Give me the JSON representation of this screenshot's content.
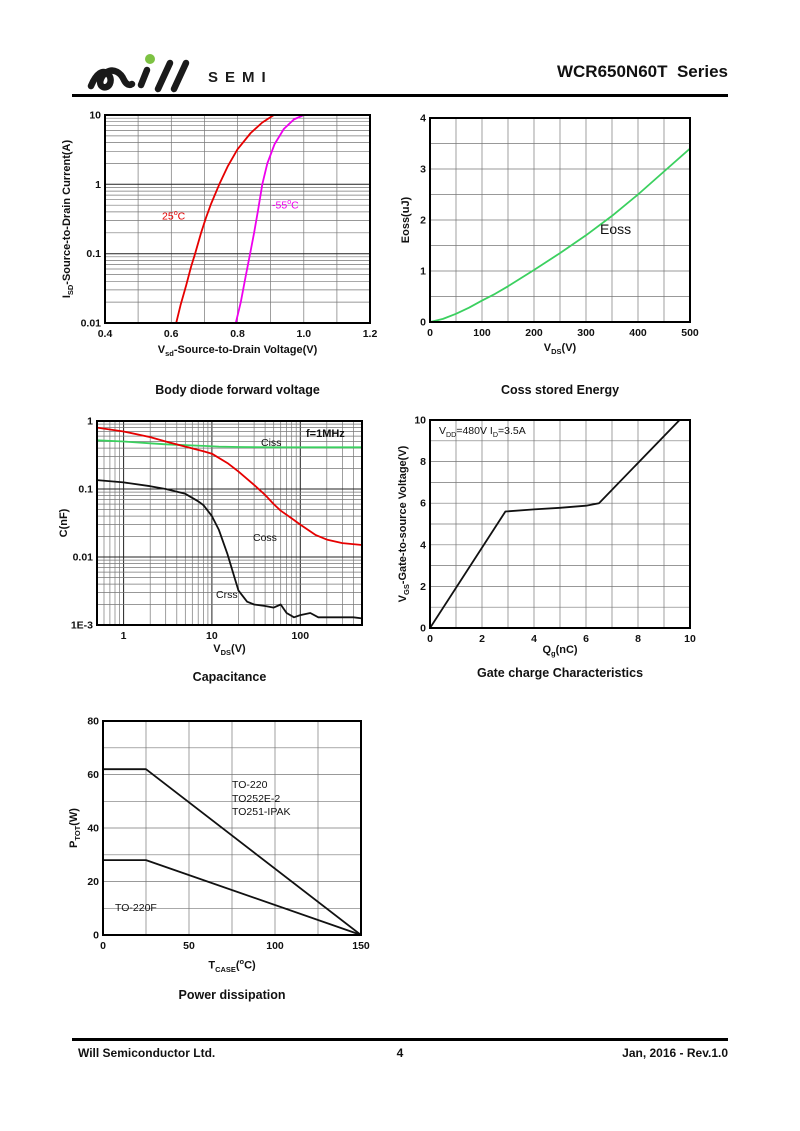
{
  "header": {
    "brand": "SEMI",
    "series_title": "WCR650N60T  Series"
  },
  "footer": {
    "company": "Will Semiconductor Ltd.",
    "page": "4",
    "date_rev": "Jan, 2016 - Rev.1.0"
  },
  "colors": {
    "red": "#e60000",
    "magenta": "#ee00ee",
    "green": "#3bd05f",
    "black": "#111111",
    "logo_dot_green": "#7dc242"
  },
  "chart_data": [
    {
      "id": "body-diode",
      "type": "line",
      "title": "Body diode forward voltage",
      "xlabel": [
        {
          "t": "V"
        },
        {
          "t": "sd",
          "sub": true
        },
        {
          "t": "-Source-to-Drain Voltage(V)"
        }
      ],
      "ylabel": [
        {
          "t": "I"
        },
        {
          "t": "SD",
          "sub": true
        },
        {
          "t": "-Source-to-Drain Current(A)"
        }
      ],
      "x_axis": {
        "scale": "linear",
        "min": 0.4,
        "max": 1.2,
        "grid_step": 0.1,
        "ticks": [
          0.4,
          0.6,
          0.8,
          1.0,
          1.2
        ],
        "tick_labels": [
          "0.4",
          "0.6",
          "0.8",
          "1.0",
          "1.2"
        ]
      },
      "y_axis": {
        "scale": "log",
        "min": 0.01,
        "max": 10,
        "ticks": [
          0.01,
          0.1,
          1,
          10
        ],
        "tick_labels": [
          "0.01",
          "0.1",
          "1",
          "10"
        ]
      },
      "series": [
        {
          "name": "25C",
          "color_key": "red",
          "points": [
            [
              0.615,
              0.01
            ],
            [
              0.628,
              0.018
            ],
            [
              0.645,
              0.035
            ],
            [
              0.66,
              0.065
            ],
            [
              0.672,
              0.1
            ],
            [
              0.69,
              0.2
            ],
            [
              0.705,
              0.33
            ],
            [
              0.72,
              0.52
            ],
            [
              0.745,
              1.0
            ],
            [
              0.77,
              1.8
            ],
            [
              0.8,
              3.2
            ],
            [
              0.84,
              5.5
            ],
            [
              0.875,
              7.8
            ],
            [
              0.91,
              10
            ]
          ]
        },
        {
          "name": "-55C",
          "color_key": "magenta",
          "points": [
            [
              0.795,
              0.01
            ],
            [
              0.81,
              0.02
            ],
            [
              0.824,
              0.045
            ],
            [
              0.838,
              0.1
            ],
            [
              0.85,
              0.2
            ],
            [
              0.862,
              0.42
            ],
            [
              0.875,
              1.0
            ],
            [
              0.89,
              2.0
            ],
            [
              0.912,
              3.8
            ],
            [
              0.94,
              6.3
            ],
            [
              0.97,
              8.6
            ],
            [
              1.0,
              10
            ]
          ]
        }
      ],
      "annotations": [
        {
          "segments": [
            {
              "t": "25"
            },
            {
              "t": "o",
              "sup": true
            },
            {
              "t": "C"
            }
          ],
          "color_key": "red",
          "fx": 0.215,
          "fy": 0.45
        },
        {
          "segments": [
            {
              "t": "-55"
            },
            {
              "t": "o",
              "sup": true
            },
            {
              "t": "C"
            }
          ],
          "color_key": "magenta",
          "fx": 0.63,
          "fy": 0.4
        }
      ]
    },
    {
      "id": "coss-energy",
      "type": "line",
      "title": "Coss stored Energy",
      "xlabel": [
        {
          "t": "V"
        },
        {
          "t": "DS",
          "sub": true
        },
        {
          "t": "(V)"
        }
      ],
      "ylabel": [
        {
          "t": "Eoss(uJ)"
        }
      ],
      "x_axis": {
        "scale": "linear",
        "min": 0,
        "max": 500,
        "grid_step": 50,
        "ticks": [
          0,
          100,
          200,
          300,
          400,
          500
        ],
        "tick_labels": [
          "0",
          "100",
          "200",
          "300",
          "400",
          "500"
        ]
      },
      "y_axis": {
        "scale": "linear",
        "min": 0,
        "max": 4,
        "grid_step": 0.5,
        "ticks": [
          0,
          1,
          2,
          3,
          4
        ],
        "tick_labels": [
          "0",
          "1",
          "2",
          "3",
          "4"
        ]
      },
      "series": [
        {
          "name": "Eoss",
          "color_key": "green",
          "points": [
            [
              0,
              0
            ],
            [
              25,
              0.06
            ],
            [
              50,
              0.16
            ],
            [
              75,
              0.28
            ],
            [
              100,
              0.42
            ],
            [
              125,
              0.55
            ],
            [
              150,
              0.7
            ],
            [
              175,
              0.86
            ],
            [
              200,
              1.02
            ],
            [
              250,
              1.35
            ],
            [
              300,
              1.7
            ],
            [
              350,
              2.08
            ],
            [
              400,
              2.5
            ],
            [
              450,
              2.95
            ],
            [
              500,
              3.4
            ]
          ]
        }
      ],
      "annotations": [
        {
          "segments": [
            {
              "t": "Eoss"
            }
          ],
          "fx": 0.655,
          "fy": 0.5,
          "size": 14
        }
      ]
    },
    {
      "id": "capacitance",
      "type": "line",
      "title": "Capacitance",
      "xlabel": [
        {
          "t": "V"
        },
        {
          "t": "DS",
          "sub": true
        },
        {
          "t": "(V)"
        }
      ],
      "ylabel": [
        {
          "t": "C(nF)"
        }
      ],
      "x_axis": {
        "scale": "log",
        "min": 0.5,
        "max": 500,
        "ticks": [
          1,
          10,
          100
        ],
        "tick_labels": [
          "1",
          "10",
          "100"
        ]
      },
      "y_axis": {
        "scale": "log",
        "min": 0.001,
        "max": 1,
        "ticks": [
          0.001,
          0.01,
          0.1,
          1
        ],
        "tick_labels": [
          "1E-3",
          "0.01",
          "0.1",
          "1"
        ]
      },
      "series": [
        {
          "name": "Ciss",
          "color_key": "green",
          "points": [
            [
              0.5,
              0.52
            ],
            [
              1,
              0.5
            ],
            [
              2,
              0.47
            ],
            [
              3,
              0.455
            ],
            [
              5,
              0.44
            ],
            [
              8,
              0.43
            ],
            [
              12,
              0.42
            ],
            [
              20,
              0.415
            ],
            [
              50,
              0.41
            ],
            [
              100,
              0.41
            ],
            [
              500,
              0.41
            ]
          ]
        },
        {
          "name": "Coss",
          "color_key": "red",
          "points": [
            [
              0.5,
              0.8
            ],
            [
              1,
              0.7
            ],
            [
              2,
              0.58
            ],
            [
              3,
              0.5
            ],
            [
              5,
              0.42
            ],
            [
              8,
              0.36
            ],
            [
              10,
              0.33
            ],
            [
              15,
              0.24
            ],
            [
              20,
              0.18
            ],
            [
              30,
              0.115
            ],
            [
              40,
              0.082
            ],
            [
              50,
              0.06
            ],
            [
              60,
              0.048
            ],
            [
              80,
              0.037
            ],
            [
              100,
              0.03
            ],
            [
              150,
              0.021
            ],
            [
              200,
              0.018
            ],
            [
              300,
              0.016
            ],
            [
              500,
              0.015
            ]
          ]
        },
        {
          "name": "Crss",
          "color_key": "black",
          "points": [
            [
              0.5,
              0.135
            ],
            [
              1,
              0.125
            ],
            [
              2,
              0.11
            ],
            [
              3,
              0.1
            ],
            [
              5,
              0.085
            ],
            [
              7,
              0.066
            ],
            [
              8,
              0.058
            ],
            [
              10,
              0.04
            ],
            [
              12,
              0.025
            ],
            [
              15,
              0.011
            ],
            [
              18,
              0.005
            ],
            [
              20,
              0.0032
            ],
            [
              25,
              0.0022
            ],
            [
              30,
              0.002
            ],
            [
              40,
              0.0019
            ],
            [
              50,
              0.0018
            ],
            [
              60,
              0.002
            ],
            [
              70,
              0.0015
            ],
            [
              85,
              0.0013
            ],
            [
              100,
              0.0014
            ],
            [
              130,
              0.0015
            ],
            [
              160,
              0.0013
            ],
            [
              250,
              0.0013
            ],
            [
              400,
              0.0013
            ],
            [
              500,
              0.00125
            ]
          ]
        }
      ],
      "annotations": [
        {
          "segments": [
            {
              "t": "f=1MHz"
            }
          ],
          "fx": 0.79,
          "fy": 0.03,
          "bold": true,
          "size": 11
        },
        {
          "segments": [
            {
              "t": "Ciss"
            }
          ],
          "fx": 0.62,
          "fy": 0.08
        },
        {
          "segments": [
            {
              "t": "Coss"
            }
          ],
          "fx": 0.59,
          "fy": 0.545
        },
        {
          "segments": [
            {
              "t": "Crss"
            }
          ],
          "fx": 0.45,
          "fy": 0.825
        }
      ]
    },
    {
      "id": "gate-charge",
      "type": "line",
      "title": "Gate charge Characteristics",
      "xlabel": [
        {
          "t": "Q"
        },
        {
          "t": "g",
          "sub": true
        },
        {
          "t": "(nC)"
        }
      ],
      "ylabel": [
        {
          "t": "V"
        },
        {
          "t": "GS",
          "sub": true
        },
        {
          "t": "-Gate-to-source Voltage(V)"
        }
      ],
      "x_axis": {
        "scale": "linear",
        "min": 0,
        "max": 10,
        "grid_step": 1,
        "ticks": [
          0,
          2,
          4,
          6,
          8,
          10
        ],
        "tick_labels": [
          "0",
          "2",
          "4",
          "6",
          "8",
          "10"
        ]
      },
      "y_axis": {
        "scale": "linear",
        "min": 0,
        "max": 10,
        "grid_step": 1,
        "ticks": [
          0,
          2,
          4,
          6,
          8,
          10
        ],
        "tick_labels": [
          "0",
          "2",
          "4",
          "6",
          "8",
          "10"
        ]
      },
      "series": [
        {
          "name": "VGS",
          "color_key": "black",
          "points": [
            [
              0,
              0
            ],
            [
              2.9,
              5.6
            ],
            [
              4,
              5.7
            ],
            [
              5,
              5.78
            ],
            [
              6,
              5.88
            ],
            [
              6.5,
              6.0
            ],
            [
              9.6,
              10
            ]
          ]
        }
      ],
      "annotations": [
        {
          "segments": [
            {
              "t": "V"
            },
            {
              "t": "DD",
              "sub": true
            },
            {
              "t": "=480V I"
            },
            {
              "t": "D",
              "sub": true
            },
            {
              "t": "=3.5A"
            }
          ],
          "fx": 0.035,
          "fy": 0.025
        }
      ]
    },
    {
      "id": "power-dissipation",
      "type": "line",
      "title": "Power dissipation",
      "xlabel": [
        {
          "t": "T"
        },
        {
          "t": "CASE",
          "sub": true
        },
        {
          "t": "("
        },
        {
          "t": "o",
          "sup": true
        },
        {
          "t": "C)"
        }
      ],
      "ylabel": [
        {
          "t": "P"
        },
        {
          "t": "TOT",
          "sub": true
        },
        {
          "t": "(W)"
        }
      ],
      "x_axis": {
        "scale": "linear",
        "min": 0,
        "max": 150,
        "grid_step": 25,
        "ticks": [
          0,
          50,
          100,
          150
        ],
        "tick_labels": [
          "0",
          "50",
          "100",
          "150"
        ]
      },
      "y_axis": {
        "scale": "linear",
        "min": 0,
        "max": 80,
        "grid_step": 10,
        "ticks": [
          0,
          20,
          40,
          60,
          80
        ],
        "tick_labels": [
          "0",
          "20",
          "40",
          "60",
          "80"
        ]
      },
      "series": [
        {
          "name": "TO-220 / TO252E-2 / TO251-IPAK",
          "color_key": "black",
          "points": [
            [
              0,
              62
            ],
            [
              25,
              62
            ],
            [
              150,
              0
            ]
          ]
        },
        {
          "name": "TO-220F",
          "color_key": "black",
          "points": [
            [
              0,
              28
            ],
            [
              25,
              28
            ],
            [
              150,
              0
            ]
          ]
        }
      ],
      "annotations": [
        {
          "lines": [
            "TO-220",
            "TO252E-2",
            "TO251-IPAK"
          ],
          "fx": 0.5,
          "fy": 0.27
        },
        {
          "lines": [
            "TO-220F"
          ],
          "fx": 0.045,
          "fy": 0.845
        }
      ]
    }
  ]
}
